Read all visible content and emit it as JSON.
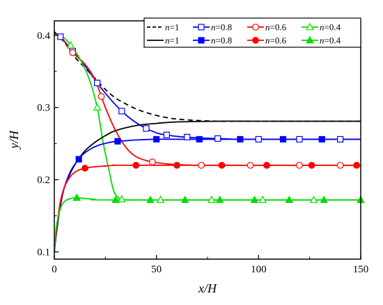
{
  "chart_data": {
    "type": "line",
    "xlabel": "x/H",
    "ylabel": "y/H",
    "xlim": [
      0,
      150
    ],
    "ylim": [
      0.09,
      0.42
    ],
    "x_ticks": [
      0,
      50,
      100,
      150
    ],
    "x_tick_labels": [
      "0",
      "50",
      "100",
      "150"
    ],
    "y_ticks": [
      0.1,
      0.2,
      0.3,
      0.4
    ],
    "y_tick_labels": [
      "0.1",
      "0.2",
      "0.3",
      "0.4"
    ],
    "grid": false,
    "legend_position": "top-right",
    "series": [
      {
        "name": "n=1",
        "group": "upper",
        "color": "#000000",
        "line": "dashed",
        "marker": "none",
        "x": [
          0,
          5,
          10,
          15,
          20,
          25,
          30,
          35,
          40,
          45,
          50,
          55,
          60,
          70,
          80,
          90,
          100,
          120,
          150
        ],
        "y": [
          0.405,
          0.39,
          0.37,
          0.355,
          0.34,
          0.325,
          0.313,
          0.305,
          0.298,
          0.293,
          0.289,
          0.286,
          0.284,
          0.282,
          0.281,
          0.281,
          0.281,
          0.281,
          0.281
        ]
      },
      {
        "name": "n=0.8",
        "group": "upper",
        "color": "#0000ff",
        "line": "solid",
        "marker": "square-open",
        "x": [
          0,
          3,
          9,
          15,
          21,
          27,
          33,
          39,
          45,
          51,
          55,
          60,
          70,
          80,
          90,
          100,
          120,
          150
        ],
        "y": [
          0.402,
          0.398,
          0.378,
          0.358,
          0.334,
          0.313,
          0.295,
          0.281,
          0.271,
          0.264,
          0.262,
          0.26,
          0.258,
          0.257,
          0.256,
          0.256,
          0.256,
          0.256
        ]
      },
      {
        "name": "n=0.6",
        "group": "upper",
        "color": "#ff0000",
        "line": "solid",
        "marker": "circle-open",
        "x": [
          0,
          3,
          9,
          15,
          20,
          25,
          30,
          35,
          40,
          47,
          55,
          60,
          70,
          80,
          100,
          150
        ],
        "y": [
          0.402,
          0.398,
          0.376,
          0.36,
          0.338,
          0.3,
          0.268,
          0.245,
          0.232,
          0.225,
          0.222,
          0.221,
          0.22,
          0.22,
          0.22,
          0.22
        ]
      },
      {
        "name": "n=0.4",
        "group": "upper",
        "color": "#00dd00",
        "line": "solid",
        "marker": "triangle-open",
        "x": [
          0,
          3,
          7,
          12,
          17,
          21,
          24,
          27,
          29,
          31,
          33,
          36,
          40,
          50,
          150
        ],
        "y": [
          0.4,
          0.4,
          0.39,
          0.37,
          0.34,
          0.3,
          0.25,
          0.21,
          0.185,
          0.176,
          0.173,
          0.172,
          0.172,
          0.172,
          0.172
        ]
      },
      {
        "name": "n=1",
        "group": "lower",
        "color": "#000000",
        "line": "solid",
        "marker": "none",
        "x": [
          0,
          1,
          3,
          5,
          8,
          11,
          15,
          20,
          25,
          30,
          40,
          50,
          60,
          80,
          100,
          150
        ],
        "y": [
          0.1,
          0.125,
          0.165,
          0.19,
          0.21,
          0.225,
          0.24,
          0.252,
          0.261,
          0.268,
          0.275,
          0.278,
          0.28,
          0.281,
          0.281,
          0.281
        ]
      },
      {
        "name": "n=0.8",
        "group": "lower",
        "color": "#0000ff",
        "line": "solid",
        "marker": "square-filled",
        "x": [
          0,
          1,
          3,
          5,
          8,
          11,
          14,
          18,
          22,
          26,
          30,
          35,
          40,
          50,
          60,
          80,
          150
        ],
        "y": [
          0.1,
          0.13,
          0.165,
          0.19,
          0.212,
          0.225,
          0.235,
          0.243,
          0.248,
          0.251,
          0.253,
          0.254,
          0.255,
          0.256,
          0.256,
          0.256,
          0.256
        ]
      },
      {
        "name": "n=0.6",
        "group": "lower",
        "color": "#ff0000",
        "line": "solid",
        "marker": "circle-filled",
        "x": [
          0,
          1,
          3,
          5,
          8,
          11,
          15,
          20,
          25,
          30,
          40,
          150
        ],
        "y": [
          0.1,
          0.13,
          0.17,
          0.19,
          0.205,
          0.212,
          0.216,
          0.218,
          0.219,
          0.22,
          0.22,
          0.22
        ]
      },
      {
        "name": "n=0.4",
        "group": "lower",
        "color": "#00dd00",
        "line": "solid",
        "marker": "triangle-filled",
        "x": [
          0,
          1,
          3,
          5,
          8,
          11,
          15,
          20,
          30,
          150
        ],
        "y": [
          0.1,
          0.135,
          0.16,
          0.17,
          0.174,
          0.175,
          0.174,
          0.173,
          0.172,
          0.172
        ]
      }
    ]
  },
  "legend": {
    "row1": [
      {
        "label": "n=1",
        "italic": "n",
        "rest": "=1",
        "color": "#000000",
        "line": "dashed",
        "marker": "none"
      },
      {
        "label": "n=0.8",
        "italic": "n",
        "rest": "=0.8",
        "color": "#0000ff",
        "line": "solid",
        "marker": "square-open"
      },
      {
        "label": "n=0.6",
        "italic": "n",
        "rest": "=0.6",
        "color": "#ff0000",
        "line": "solid",
        "marker": "circle-open"
      },
      {
        "label": "n=0.4",
        "italic": "n",
        "rest": "=0.4",
        "color": "#00dd00",
        "line": "solid",
        "marker": "triangle-open"
      }
    ],
    "row2": [
      {
        "label": "n=1",
        "italic": "n",
        "rest": "=1",
        "color": "#000000",
        "line": "solid",
        "marker": "none"
      },
      {
        "label": "n=0.8",
        "italic": "n",
        "rest": "=0.8",
        "color": "#0000ff",
        "line": "solid",
        "marker": "square-filled"
      },
      {
        "label": "n=0.6",
        "italic": "n",
        "rest": "=0.6",
        "color": "#ff0000",
        "line": "solid",
        "marker": "circle-filled"
      },
      {
        "label": "n=0.4",
        "italic": "n",
        "rest": "=0.4",
        "color": "#00dd00",
        "line": "solid",
        "marker": "triangle-filled"
      }
    ]
  }
}
